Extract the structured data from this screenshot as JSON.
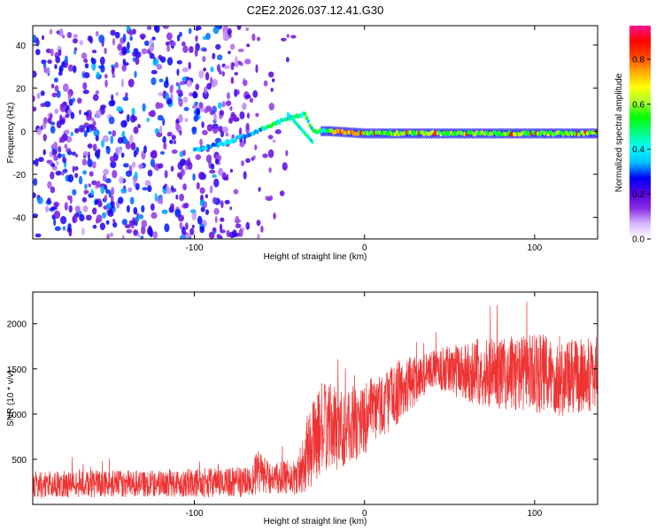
{
  "title": "C2E2.2026.037.12.41.G30",
  "chart_data": [
    {
      "type": "heatmap",
      "xlabel": "Height of straight line (km)",
      "ylabel": "Frequency (Hz)",
      "xlim": [
        -195,
        137
      ],
      "ylim": [
        -50,
        49
      ],
      "xticks": [
        -100,
        0,
        100
      ],
      "xtick_labels": [
        "-100",
        "0",
        "100"
      ],
      "yticks": [
        -40,
        -20,
        0,
        20,
        40
      ],
      "ytick_labels": [
        "-40",
        "-20",
        "0",
        "20",
        "40"
      ],
      "colorbar": {
        "label": "Normalized spectral amplitude",
        "range": [
          0.0,
          0.95
        ],
        "ticks": [
          0.0,
          0.2,
          0.4,
          0.6,
          0.8
        ],
        "tick_labels": [
          "0.0",
          "0.2",
          "0.4",
          "0.6",
          "0.8"
        ],
        "colors": [
          "#ffffff",
          "#d8b8ff",
          "#8a2be2",
          "#5500dd",
          "#0000ff",
          "#00bfff",
          "#00ffff",
          "#00ff7f",
          "#00ff00",
          "#adff2f",
          "#ffff00",
          "#ffa500",
          "#ff4500",
          "#ff0000",
          "#ff1493"
        ]
      },
      "features": {
        "noise_region_x": [
          -195,
          -40
        ],
        "ridge_start_x": -100,
        "ridge_points": [
          [
            -120,
            -9
          ],
          [
            -100,
            -9
          ],
          [
            -80,
            -5
          ],
          [
            -60,
            1
          ],
          [
            -45,
            6
          ],
          [
            -35,
            8
          ],
          [
            -30,
            0
          ],
          [
            -20,
            0
          ],
          [
            0,
            -1
          ],
          [
            50,
            -1
          ],
          [
            100,
            -1
          ],
          [
            137,
            -1
          ]
        ]
      }
    },
    {
      "type": "line",
      "xlabel": "Height of straight line (km)",
      "ylabel": "SNR (10 * v/v)",
      "xlim": [
        -195,
        137
      ],
      "ylim": [
        0,
        2350
      ],
      "xticks": [
        -100,
        0,
        100
      ],
      "xtick_labels": [
        "-100",
        "0",
        "100"
      ],
      "yticks": [
        500,
        1000,
        1500,
        2000
      ],
      "ytick_labels": [
        "500",
        "1000",
        "1500",
        "2000"
      ],
      "color": "#ee3333",
      "series_envelope": [
        {
          "x": -195,
          "mean": 220,
          "spread": 150
        },
        {
          "x": -150,
          "mean": 230,
          "spread": 150
        },
        {
          "x": -100,
          "mean": 240,
          "spread": 160
        },
        {
          "x": -70,
          "mean": 250,
          "spread": 170
        },
        {
          "x": -62,
          "mean": 350,
          "spread": 250
        },
        {
          "x": -55,
          "mean": 280,
          "spread": 170
        },
        {
          "x": -40,
          "mean": 300,
          "spread": 200
        },
        {
          "x": -33,
          "mean": 600,
          "spread": 450
        },
        {
          "x": -25,
          "mean": 850,
          "spread": 500
        },
        {
          "x": -10,
          "mean": 850,
          "spread": 450
        },
        {
          "x": 0,
          "mean": 950,
          "spread": 400
        },
        {
          "x": 20,
          "mean": 1250,
          "spread": 350
        },
        {
          "x": 40,
          "mean": 1500,
          "spread": 200
        },
        {
          "x": 60,
          "mean": 1480,
          "spread": 350
        },
        {
          "x": 80,
          "mean": 1450,
          "spread": 400
        },
        {
          "x": 100,
          "mean": 1450,
          "spread": 450
        },
        {
          "x": 120,
          "mean": 1400,
          "spread": 450
        },
        {
          "x": 137,
          "mean": 1450,
          "spread": 400
        }
      ]
    }
  ]
}
